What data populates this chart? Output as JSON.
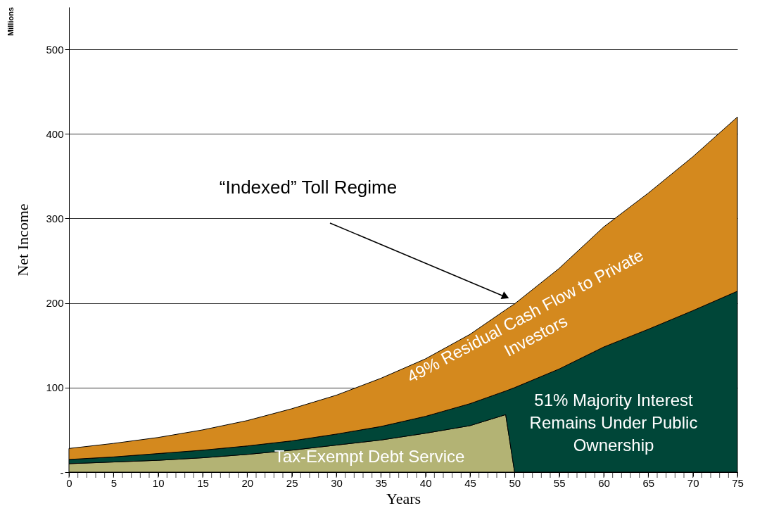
{
  "chart_data": {
    "type": "area",
    "stacked": true,
    "ylabel": "Net Income",
    "xlabel": "Years",
    "x": [
      0,
      5,
      10,
      15,
      20,
      25,
      30,
      35,
      40,
      45,
      49,
      50,
      55,
      60,
      65,
      70,
      75
    ],
    "series": [
      {
        "name": "Tax-Exempt Debt Service",
        "color": "#b3b374",
        "values": [
          10,
          12,
          14,
          17,
          21,
          26,
          32,
          38,
          46,
          55,
          68,
          0,
          0,
          0,
          0,
          0,
          0
        ]
      },
      {
        "name": "51% Majority Interest Remains Under Public Ownership",
        "color": "#004638",
        "values": [
          5,
          6,
          8,
          9,
          10,
          11,
          13,
          16,
          20,
          26,
          28,
          100,
          122,
          148,
          169,
          191,
          214
        ]
      },
      {
        "name": "49% Residual Cash Flow to Private Investors",
        "color": "#d4891e",
        "values": [
          13,
          16,
          19,
          24,
          30,
          38,
          46,
          57,
          68,
          82,
          96,
          99,
          119,
          142,
          161,
          182,
          206
        ]
      }
    ],
    "xlim": [
      0,
      75
    ],
    "xticks": [
      0,
      5,
      10,
      15,
      20,
      25,
      30,
      35,
      40,
      45,
      50,
      55,
      60,
      65,
      70,
      75
    ],
    "ylim": [
      0,
      550
    ],
    "yticks": [
      {
        "value": 0,
        "label": "-"
      },
      100,
      200,
      300,
      400,
      500
    ],
    "grid": "y",
    "legend": false,
    "annotations": [
      "Millions",
      "“Indexed” Toll Regime"
    ]
  }
}
